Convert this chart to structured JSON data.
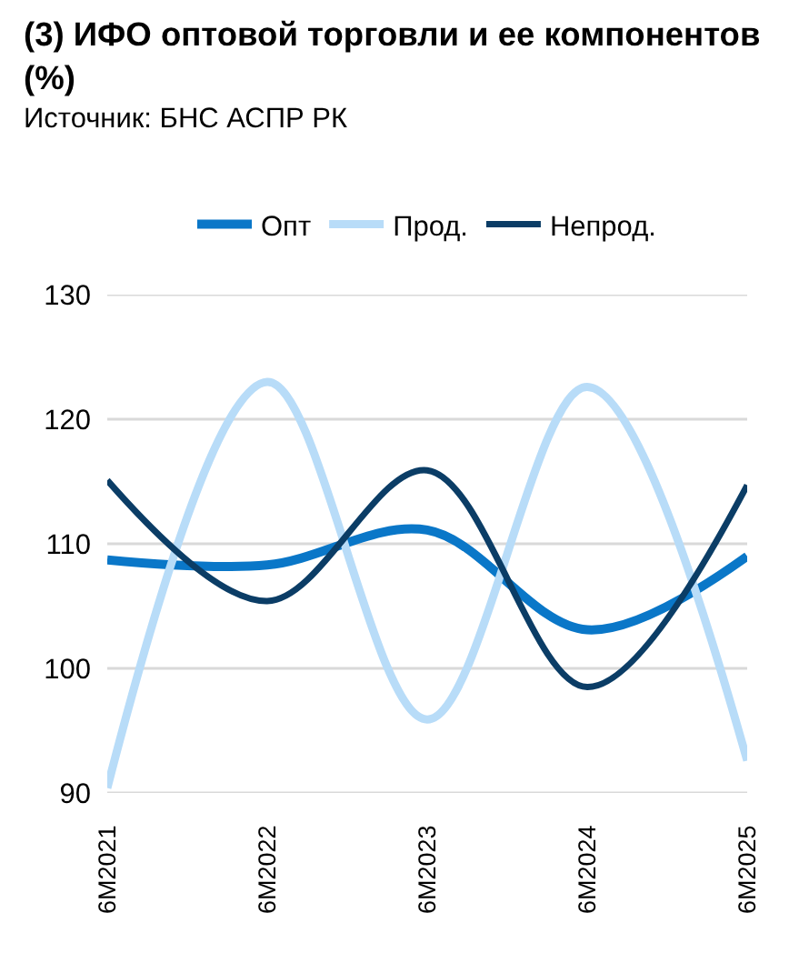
{
  "chart_data": {
    "type": "line",
    "title": "(3) ИФО оптовой торговли и ее компонентов (%)",
    "annotations": [
      "Источник: БНС АСПР РК"
    ],
    "categories": [
      "6M2021",
      "6M2022",
      "6M2023",
      "6M2024",
      "6M2025"
    ],
    "series": [
      {
        "name": "Опт",
        "color": "#0a77c8",
        "values": [
          108.7,
          108.3,
          111.1,
          103.1,
          109.0
        ]
      },
      {
        "name": "Прод.",
        "color": "#b8dcf8",
        "values": [
          90.4,
          123.0,
          95.9,
          122.6,
          92.6
        ]
      },
      {
        "name": "Непрод.",
        "color": "#0b3d66",
        "values": [
          115.1,
          105.4,
          115.9,
          98.5,
          114.7
        ]
      }
    ],
    "ylim": [
      90,
      130
    ],
    "yticks": [
      90,
      100,
      110,
      120,
      130
    ],
    "grid": "y",
    "legend": "top",
    "marker": "none",
    "line_style": "solid"
  }
}
